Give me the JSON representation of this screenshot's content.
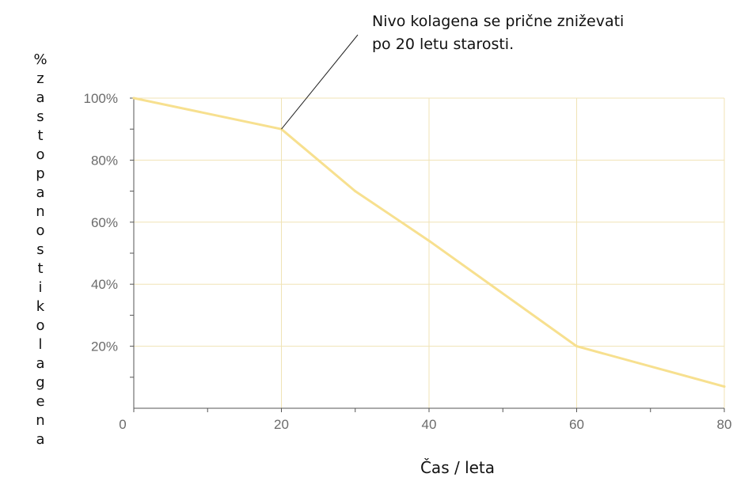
{
  "chart_data": {
    "type": "line",
    "x": [
      0,
      20,
      30,
      40,
      60,
      80
    ],
    "series": [
      {
        "values": [
          100,
          90,
          70,
          54,
          20,
          7
        ],
        "color": "#f7e08f"
      }
    ],
    "xticks": [
      "0",
      "20",
      "40",
      "60",
      "80"
    ],
    "yticks": [
      "20%",
      "40%",
      "60%",
      "80%",
      "100%"
    ],
    "xlabel": "Čas / leta",
    "ylabel": "% zastopanosti kolagena",
    "xlim": [
      0,
      80
    ],
    "ylim": [
      0,
      100
    ],
    "grid": true,
    "annotation": {
      "lines": [
        "Nivo kolagena se prične zniževati",
        "po 20 letu starosti."
      ],
      "x": 20,
      "y": 90
    },
    "colors": {
      "grid": "#f0e3b5",
      "axis": "#555555",
      "tick_text": "#6b6b6b"
    }
  }
}
